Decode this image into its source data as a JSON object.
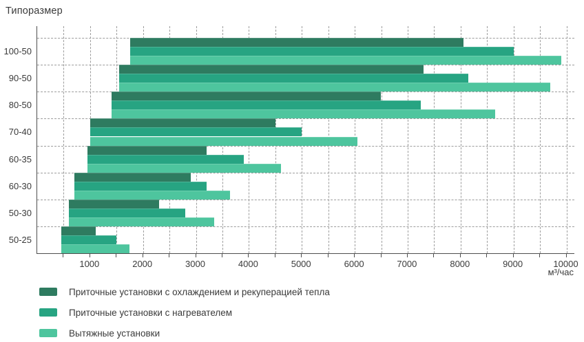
{
  "chart_data": {
    "type": "bar",
    "orientation": "horizontal-range",
    "title": "Типоразмер",
    "x_unit_label": "м³/час",
    "categories": [
      "100-50",
      "90-50",
      "80-50",
      "70-40",
      "60-35",
      "60-30",
      "50-30",
      "50-25"
    ],
    "series": [
      {
        "name": "Приточные установки с охлаждением и рекуперацией тепла",
        "color": "#2e7b60",
        "ranges_m3_per_hour": [
          [
            1750,
            8050
          ],
          [
            1550,
            7300
          ],
          [
            1400,
            6500
          ],
          [
            1000,
            4500
          ],
          [
            950,
            3200
          ],
          [
            700,
            2900
          ],
          [
            600,
            2300
          ],
          [
            450,
            1100
          ]
        ]
      },
      {
        "name": "Приточные установки с нагревателем",
        "color": "#27a482",
        "ranges_m3_per_hour": [
          [
            1750,
            9000
          ],
          [
            1550,
            8150
          ],
          [
            1400,
            7250
          ],
          [
            1000,
            5000
          ],
          [
            950,
            3900
          ],
          [
            700,
            3200
          ],
          [
            600,
            2800
          ],
          [
            450,
            1500
          ]
        ]
      },
      {
        "name": "Вытяжные установки",
        "color": "#4ec59e",
        "ranges_m3_per_hour": [
          [
            1750,
            9900
          ],
          [
            1550,
            9700
          ],
          [
            1400,
            8650
          ],
          [
            1000,
            6050
          ],
          [
            950,
            4600
          ],
          [
            700,
            3650
          ],
          [
            600,
            3350
          ],
          [
            450,
            1750
          ]
        ]
      }
    ],
    "x_axis": {
      "min": 0,
      "max": 10150,
      "major_ticks": [
        1000,
        2000,
        3000,
        4000,
        5000,
        6000,
        7000,
        8000,
        9000,
        10000
      ],
      "minor_tick_step": 500,
      "gridline_style": "dashed"
    },
    "legend_position": "bottom-left",
    "colors": {
      "axis": "#4d4d4d",
      "gridline": "#9c9c9c",
      "text": "#3a3a3a"
    }
  }
}
